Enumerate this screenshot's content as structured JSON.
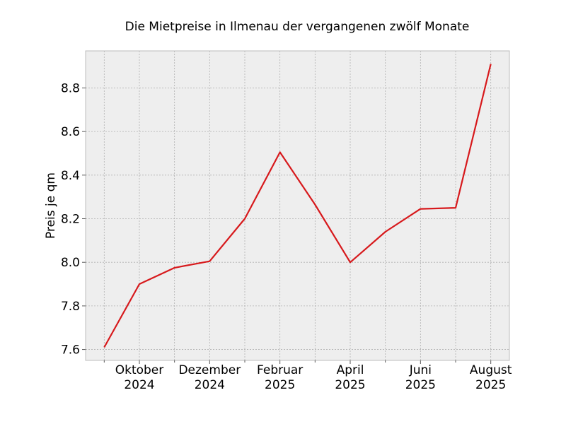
{
  "chart_data": {
    "type": "line",
    "title": "Die Mietpreise in Ilmenau der vergangenen zwölf Monate",
    "xlabel": "",
    "ylabel": "Preis je qm",
    "x": [
      "2024-09",
      "2024-10",
      "2024-11",
      "2024-12",
      "2025-01",
      "2025-02",
      "2025-03",
      "2025-04",
      "2025-05",
      "2025-06",
      "2025-07",
      "2025-08"
    ],
    "series": [
      {
        "values": [
          7.61,
          7.9,
          7.975,
          8.005,
          8.2,
          8.505,
          8.265,
          8.0,
          8.14,
          8.245,
          8.25,
          8.91
        ],
        "color": "#d7191c"
      }
    ],
    "x_ticks": [
      {
        "line1": "Oktober",
        "line2": "2024",
        "month_index": 1
      },
      {
        "line1": "Dezember",
        "line2": "2024",
        "month_index": 3
      },
      {
        "line1": "Februar",
        "line2": "2025",
        "month_index": 5
      },
      {
        "line1": "April",
        "line2": "2025",
        "month_index": 7
      },
      {
        "line1": "Juni",
        "line2": "2025",
        "month_index": 9
      },
      {
        "line1": "August",
        "line2": "2025",
        "month_index": 11
      }
    ],
    "y_ticks": [
      "7.6",
      "7.8",
      "8.0",
      "8.2",
      "8.4",
      "8.6",
      "8.8"
    ],
    "ylim": [
      7.55,
      8.97
    ],
    "xlim": [
      -0.53,
      11.53
    ],
    "grid": true,
    "background_color": "#eeeeee",
    "grid_color": "#b0b0b0"
  }
}
